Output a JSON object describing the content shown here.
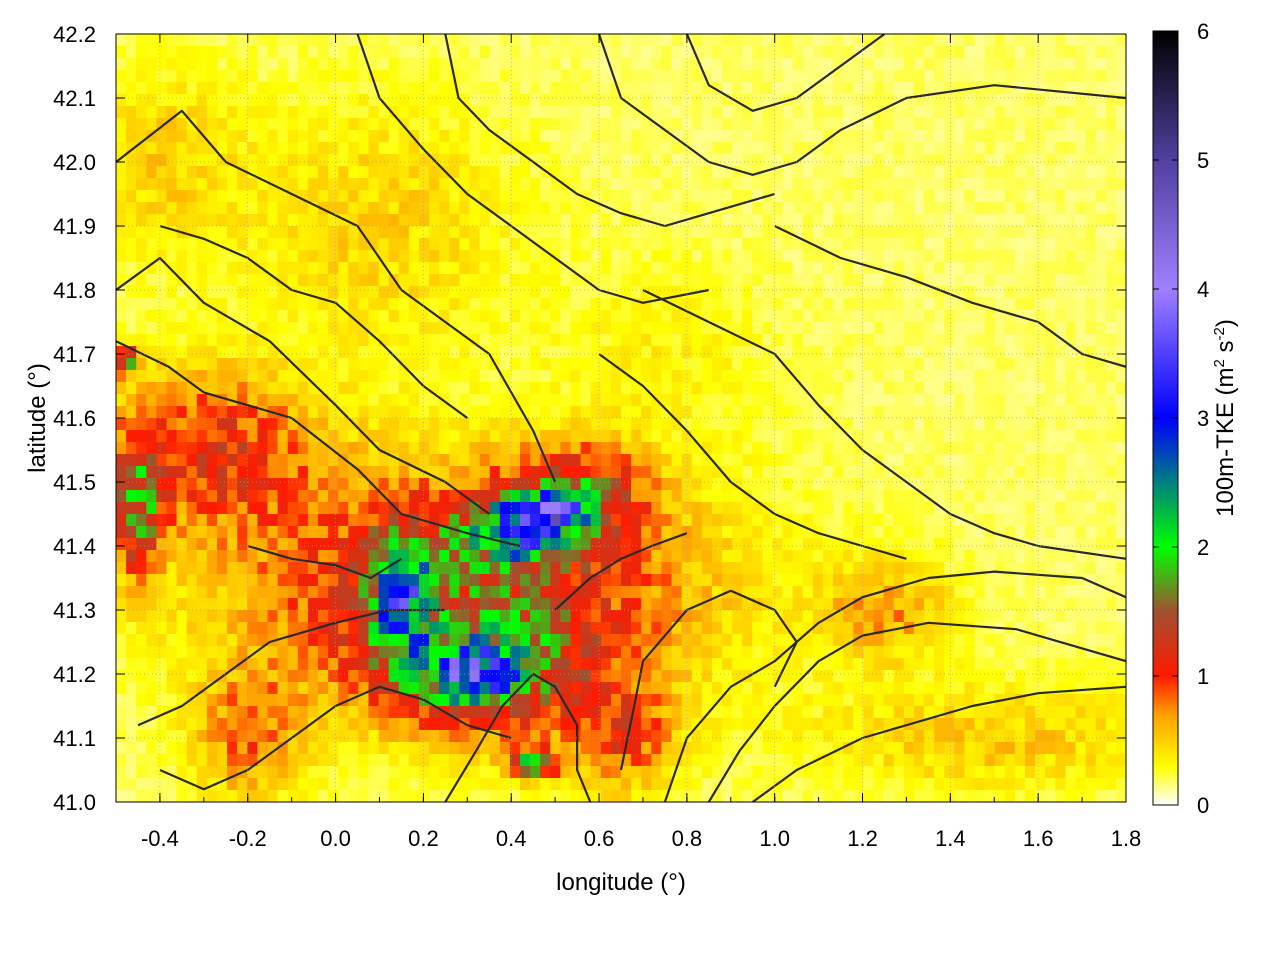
{
  "chart_data": {
    "type": "heatmap",
    "title": "",
    "xlabel": "longitude (°)",
    "ylabel": "latitude (°)",
    "colorbar_label": "100m-TKE (m² s⁻²)",
    "colorbar_label_parts": {
      "main": "100m-TKE (m",
      "sup1": "2",
      "mid": " s",
      "sup2": "-2",
      "end": ")"
    },
    "xlim": [
      -0.5,
      1.8
    ],
    "ylim": [
      41.0,
      42.2
    ],
    "zlim": [
      0,
      6
    ],
    "x_ticks": [
      -0.4,
      -0.2,
      0.0,
      0.2,
      0.4,
      0.6,
      0.8,
      1.0,
      1.2,
      1.4,
      1.6,
      1.8
    ],
    "x_tick_labels": [
      "-0.4",
      "-0.2",
      "0.0",
      "0.2",
      "0.4",
      "0.6",
      "0.8",
      "1.0",
      "1.2",
      "1.4",
      "1.6",
      "1.8"
    ],
    "y_ticks": [
      41.0,
      41.1,
      41.2,
      41.3,
      41.4,
      41.5,
      41.6,
      41.7,
      41.8,
      41.9,
      42.0,
      42.1,
      42.2
    ],
    "y_tick_labels": [
      "41.0",
      "41.1",
      "41.2",
      "41.3",
      "41.4",
      "41.5",
      "41.6",
      "41.7",
      "41.8",
      "41.9",
      "42.0",
      "42.1",
      "42.2"
    ],
    "colorbar_ticks": [
      0,
      1,
      2,
      3,
      4,
      5,
      6
    ],
    "colorbar_tick_labels": [
      "0",
      "1",
      "2",
      "3",
      "4",
      "5",
      "6"
    ],
    "colormap": [
      {
        "value": 0.0,
        "color": "#ffffff"
      },
      {
        "value": 0.3,
        "color": "#ffff00"
      },
      {
        "value": 0.7,
        "color": "#ffa000"
      },
      {
        "value": 1.0,
        "color": "#ff1a00"
      },
      {
        "value": 1.5,
        "color": "#a05030"
      },
      {
        "value": 2.0,
        "color": "#00ff00"
      },
      {
        "value": 3.0,
        "color": "#0000ff"
      },
      {
        "value": 4.0,
        "color": "#a080ff"
      },
      {
        "value": 5.0,
        "color": "#5040a0"
      },
      {
        "value": 6.0,
        "color": "#000000"
      }
    ],
    "grid": true,
    "contour_color": "#2a2a2a",
    "tke_features": [
      {
        "lon": 0.3,
        "lat": 41.33,
        "sx": 0.5,
        "sy": 0.18,
        "amp": 1.2
      },
      {
        "lon": -0.3,
        "lat": 41.55,
        "sx": 0.25,
        "sy": 0.12,
        "amp": 0.9
      },
      {
        "lon": 0.55,
        "lat": 41.48,
        "sx": 0.15,
        "sy": 0.07,
        "amp": 1.0
      },
      {
        "lon": 0.35,
        "lat": 41.2,
        "sx": 0.22,
        "sy": 0.09,
        "amp": 1.0
      },
      {
        "lon": 0.15,
        "lat": 41.32,
        "sx": 0.07,
        "sy": 0.1,
        "amp": 1.6
      },
      {
        "lon": 0.4,
        "lat": 41.42,
        "sx": 0.12,
        "sy": 0.05,
        "amp": 1.5
      },
      {
        "lon": 0.48,
        "lat": 41.45,
        "sx": 0.08,
        "sy": 0.03,
        "amp": 1.9
      },
      {
        "lon": 0.3,
        "lat": 41.2,
        "sx": 0.1,
        "sy": 0.04,
        "amp": 1.7
      },
      {
        "lon": -0.45,
        "lat": 41.45,
        "sx": 0.05,
        "sy": 0.1,
        "amp": 1.2
      },
      {
        "lon": -0.48,
        "lat": 41.69,
        "sx": 0.03,
        "sy": 0.02,
        "amp": 1.6
      },
      {
        "lon": 0.45,
        "lat": 41.06,
        "sx": 0.05,
        "sy": 0.02,
        "amp": 1.8
      },
      {
        "lon": 0.65,
        "lat": 41.1,
        "sx": 0.12,
        "sy": 0.08,
        "amp": 0.7
      },
      {
        "lon": -0.2,
        "lat": 41.1,
        "sx": 0.12,
        "sy": 0.1,
        "amp": 0.6
      },
      {
        "lon": 1.5,
        "lat": 41.1,
        "sx": 0.4,
        "sy": 0.08,
        "amp": 0.35
      },
      {
        "lon": 1.25,
        "lat": 41.3,
        "sx": 0.15,
        "sy": 0.08,
        "amp": 0.5
      },
      {
        "lon": -0.4,
        "lat": 42.0,
        "sx": 0.2,
        "sy": 0.15,
        "amp": 0.3
      },
      {
        "lon": 0.1,
        "lat": 41.9,
        "sx": 0.3,
        "sy": 0.2,
        "amp": 0.3
      },
      {
        "lon": 0.75,
        "lat": 41.7,
        "sx": 0.25,
        "sy": 0.15,
        "amp": 0.15
      }
    ]
  }
}
